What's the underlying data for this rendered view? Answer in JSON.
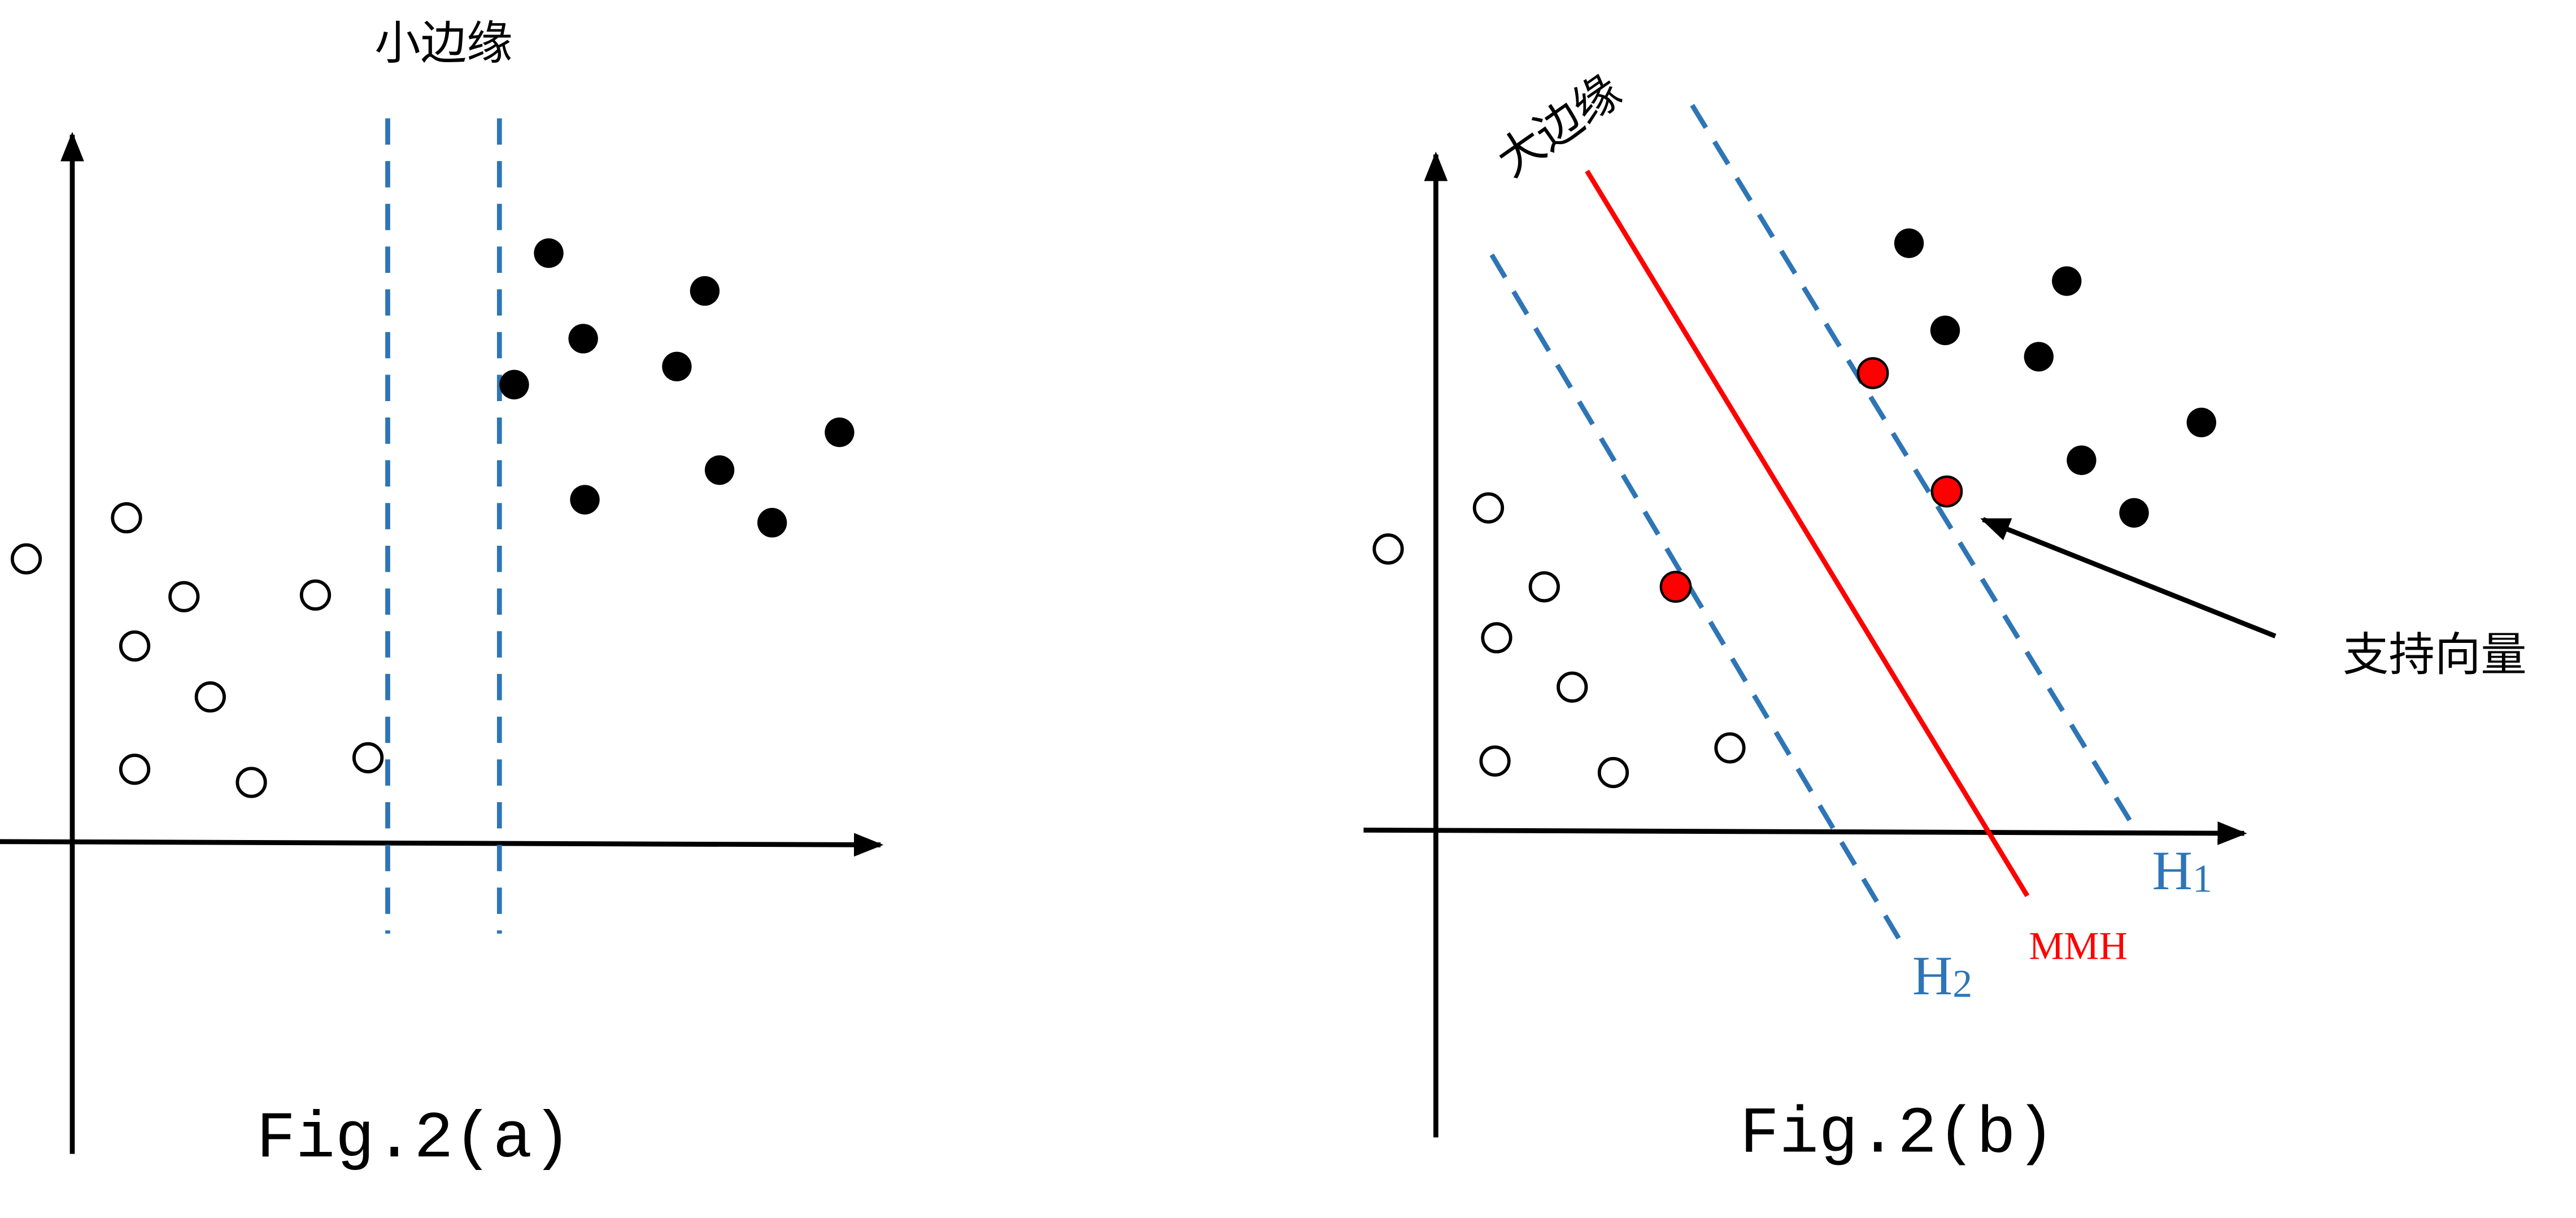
{
  "figure_a": {
    "top_label": "小边缘",
    "caption": "Fig.2(a)"
  },
  "figure_b": {
    "top_label": "大边缘",
    "support_vector_label": "支持向量",
    "h1": {
      "letter": "H",
      "subscript": "1"
    },
    "h2": {
      "letter": "H",
      "subscript": "2"
    },
    "mmh_label": "MMH",
    "caption": "Fig.2(b)"
  }
}
